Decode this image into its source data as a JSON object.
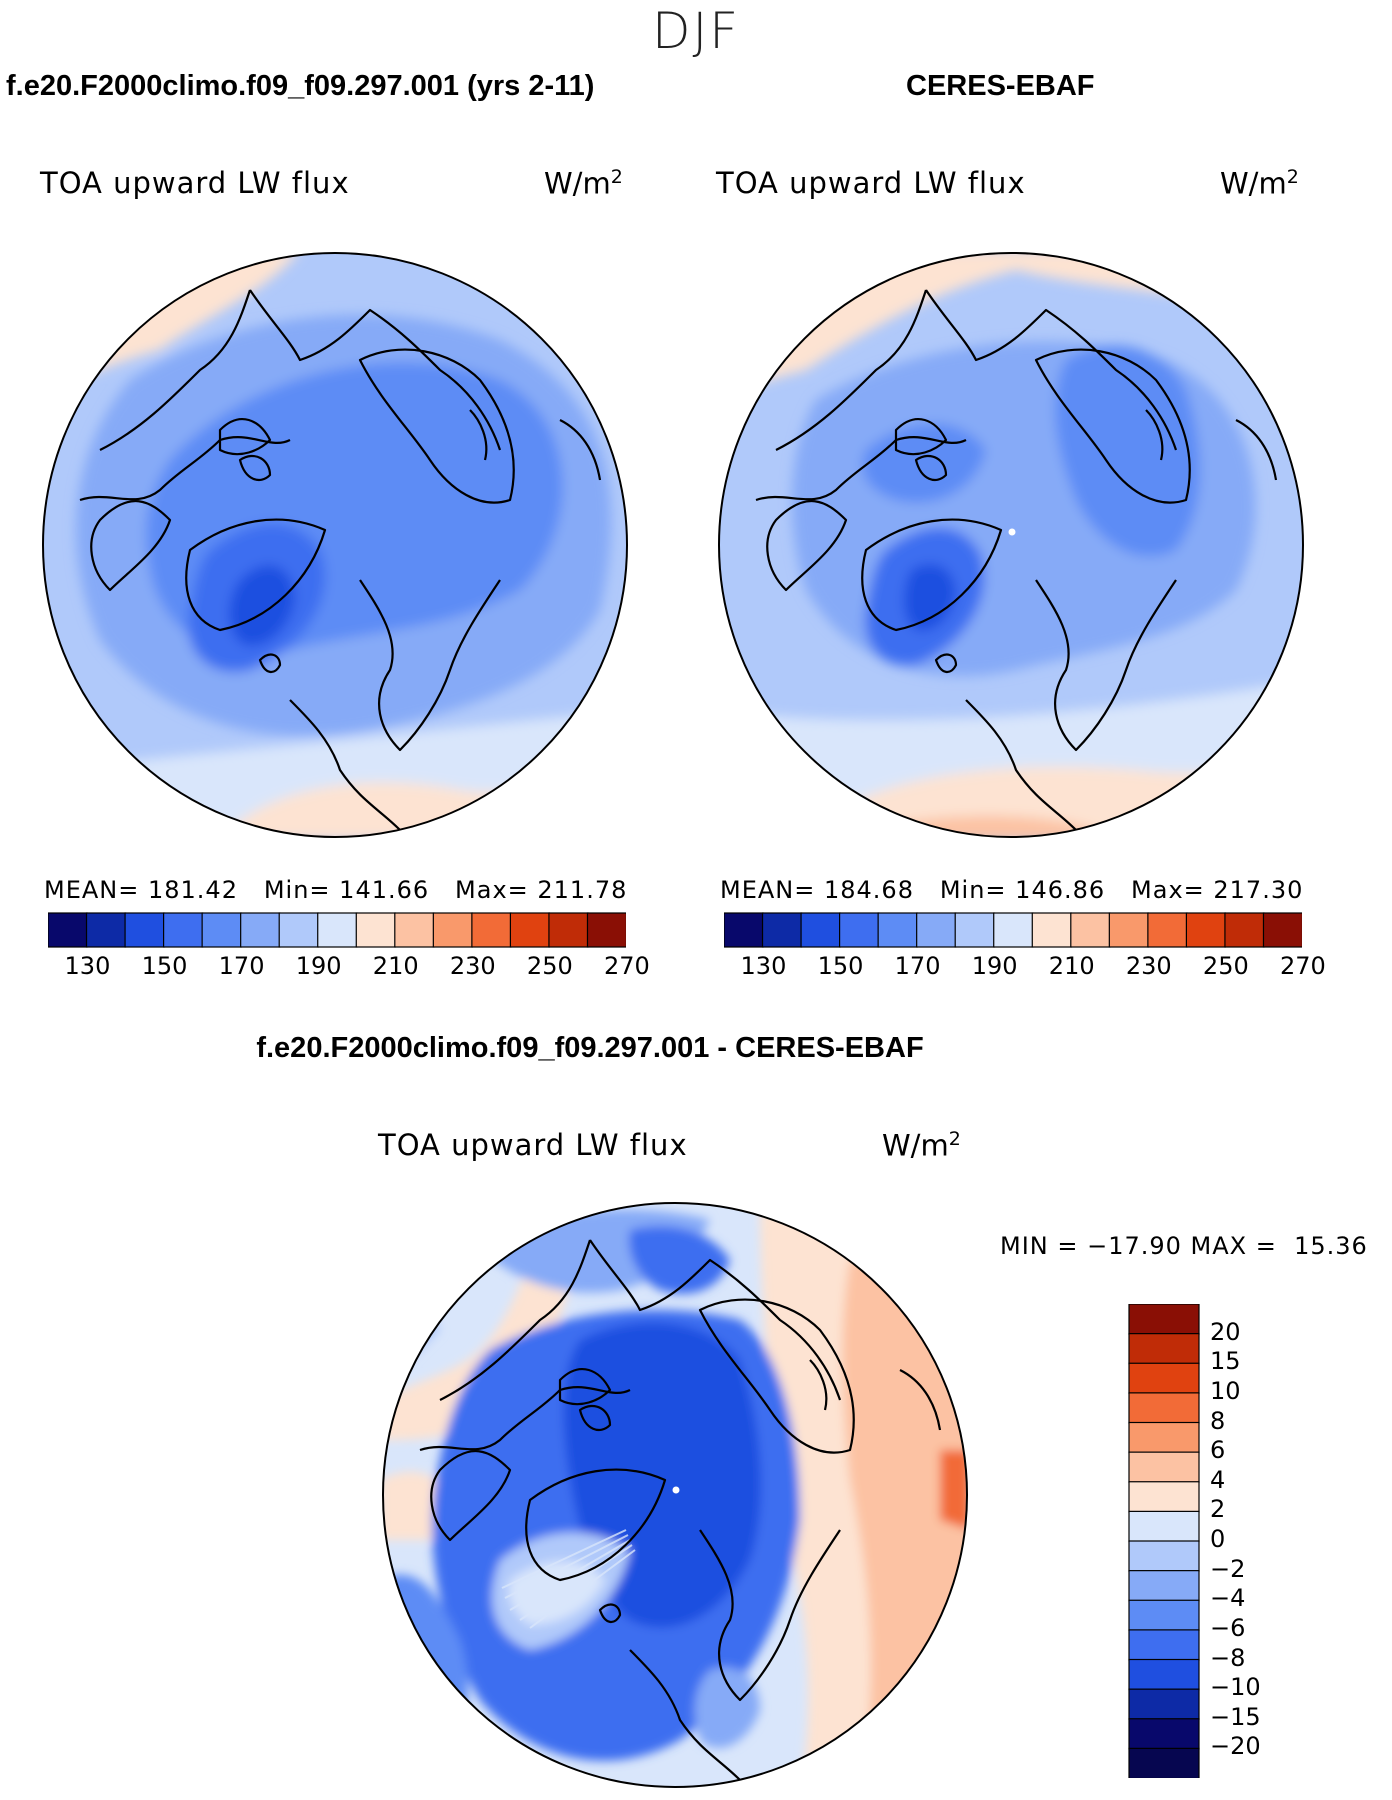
{
  "figure": {
    "season": "DJF",
    "panel_model": {
      "title": "f.e20.F2000climo.f09_f09.297.001 (yrs 2-11)",
      "variable": "TOA upward LW flux",
      "units": "W/m",
      "units_exp": "2",
      "stats": "MEAN= 181.42   Min= 141.66   Max= 211.78"
    },
    "panel_obs": {
      "title": "CERES-EBAF",
      "variable": "TOA upward LW flux",
      "units": "W/m",
      "units_exp": "2",
      "stats": "MEAN= 184.68   Min= 146.86   Max= 217.30"
    },
    "panel_diff": {
      "title": "f.e20.F2000climo.f09_f09.297.001 - CERES-EBAF",
      "variable": "TOA upward LW flux",
      "units": "W/m",
      "units_exp": "2",
      "minmax": "MIN = −17.90 MAX =  15.36"
    },
    "colorbar_abs": {
      "tick_labels": [
        "130",
        "150",
        "170",
        "190",
        "210",
        "230",
        "250",
        "270"
      ],
      "colors": [
        "#08086b",
        "#0d2aa6",
        "#1f4fe0",
        "#3e6ef0",
        "#5d8cf5",
        "#86aaf7",
        "#b0c9fa",
        "#d9e6fb",
        "#fde3d2",
        "#fcc2a3",
        "#f9996b",
        "#f26b37",
        "#e04210",
        "#c02c07",
        "#8a0f05"
      ]
    },
    "colorbar_diff": {
      "tick_labels": [
        "20",
        "15",
        "10",
        "8",
        "6",
        "4",
        "2",
        "0",
        "−2",
        "−4",
        "−6",
        "−8",
        "−10",
        "−15",
        "−20"
      ],
      "colors": [
        "#8a0f05",
        "#c02c07",
        "#e04210",
        "#f26b37",
        "#f9996b",
        "#fcc2a3",
        "#fde3d2",
        "#d9e6fb",
        "#b0c9fa",
        "#86aaf7",
        "#5d8cf5",
        "#3e6ef0",
        "#1f4fe0",
        "#0d2aa6",
        "#08086b"
      ]
    }
  }
}
